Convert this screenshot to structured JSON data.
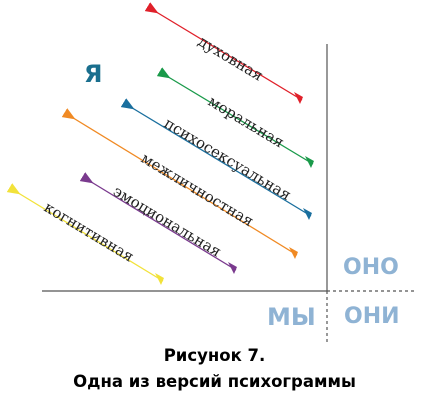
{
  "quadrants": {
    "ya": {
      "text": "Я",
      "color": "#1a6f8e"
    },
    "ono": {
      "text": "ОНО",
      "color": "#8fb3d4"
    },
    "my": {
      "text": "МЫ",
      "color": "#8fb3d4"
    },
    "oni": {
      "text": "ОНИ",
      "color": "#8fb3d4"
    }
  },
  "lines": [
    {
      "label": "духовная",
      "color": "#e0202a"
    },
    {
      "label": "моральная",
      "color": "#1a9a4a"
    },
    {
      "label": "психосексуальная",
      "color": "#1a6f9e"
    },
    {
      "label": "межличностная",
      "color": "#f08a24"
    },
    {
      "label": "эмоциональная",
      "color": "#7a3a8e"
    },
    {
      "label": "когнитивная",
      "color": "#f2e23a"
    }
  ],
  "caption": {
    "line1": "Рисунок 7.",
    "line2": "Одна из версий психограммы"
  }
}
